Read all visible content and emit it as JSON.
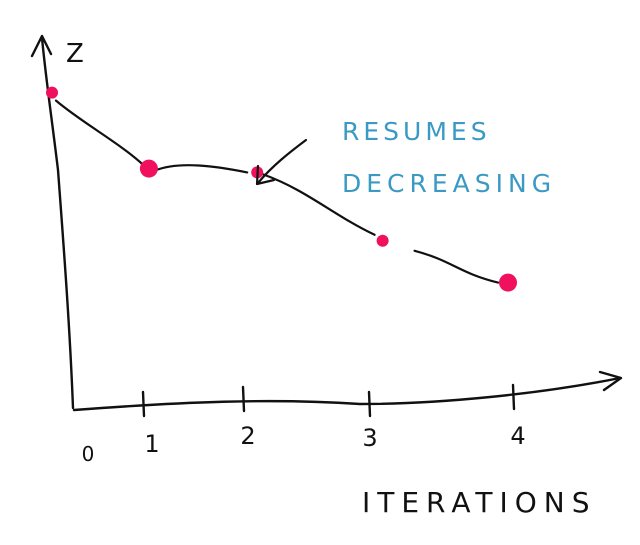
{
  "chart_data": {
    "type": "line",
    "title": "",
    "xlabel": "ITERATIONS",
    "ylabel": "Z",
    "x_ticks": [
      "0",
      "1",
      "2",
      "3",
      "4"
    ],
    "x": [
      0,
      0.85,
      1.8,
      2.9,
      4.0
    ],
    "y": [
      0.83,
      0.63,
      0.62,
      0.44,
      0.33
    ],
    "xlim": [
      0,
      4.5
    ],
    "ylim": [
      0,
      1
    ],
    "grid": false,
    "marker_color": "#f0105e",
    "annotation": {
      "line1": "RESUMES",
      "line2": "DECREASING",
      "color": "#3a9ac4"
    }
  }
}
